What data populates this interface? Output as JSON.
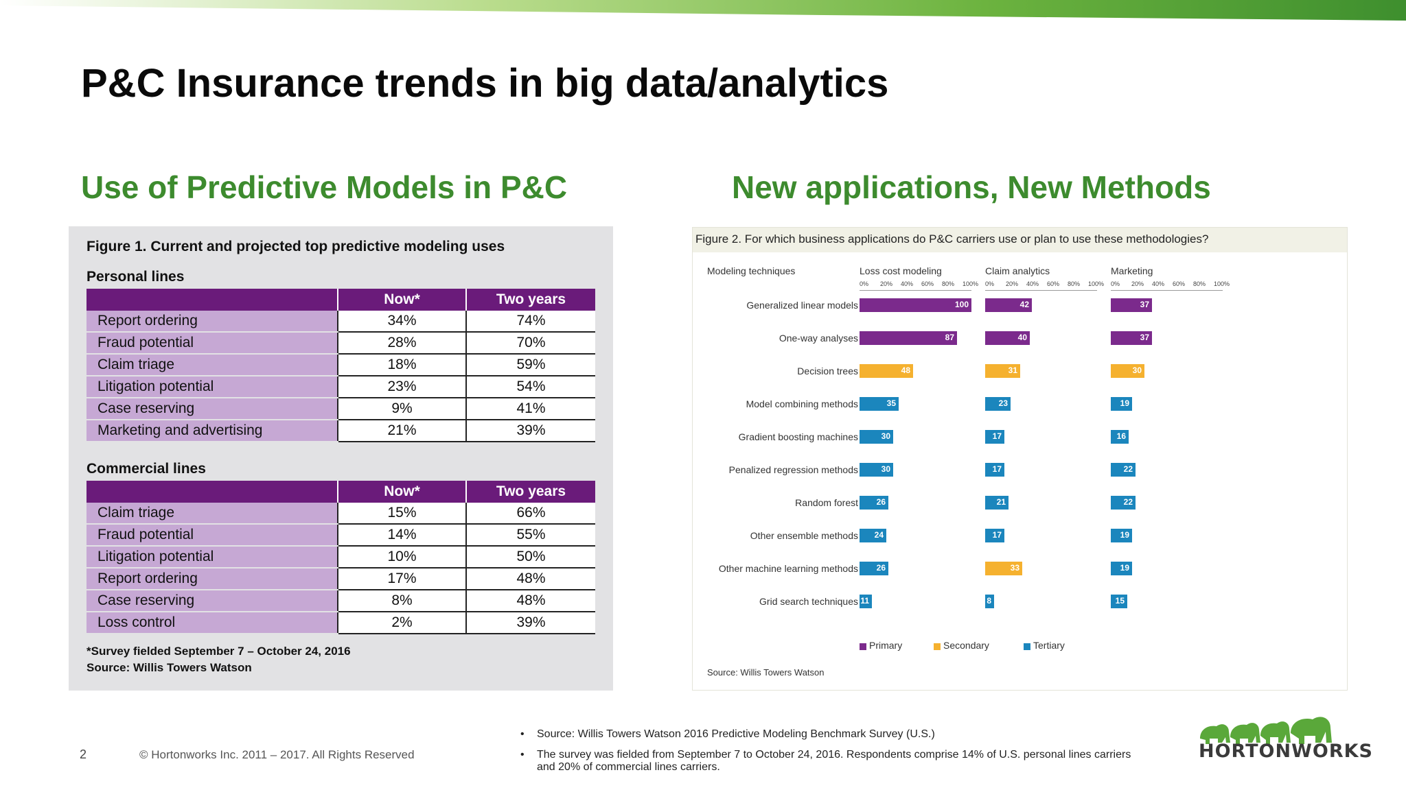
{
  "slide": {
    "title": "P&C Insurance trends in big data/analytics",
    "left_heading": "Use of Predictive Models in P&C",
    "right_heading": "New applications, New Methods"
  },
  "figure1": {
    "caption_prefix": "Figure 1.",
    "caption_rest": "Current and projected top predictive modeling uses",
    "personal": {
      "label": "Personal lines",
      "col_now": "Now*",
      "col_two": "Two years",
      "rows": [
        {
          "label": "Report ordering",
          "now": "34%",
          "two": "74%"
        },
        {
          "label": "Fraud potential",
          "now": "28%",
          "two": "70%"
        },
        {
          "label": "Claim triage",
          "now": "18%",
          "two": "59%"
        },
        {
          "label": "Litigation potential",
          "now": "23%",
          "two": "54%"
        },
        {
          "label": "Case reserving",
          "now": "9%",
          "two": "41%"
        },
        {
          "label": "Marketing and advertising",
          "now": "21%",
          "two": "39%"
        }
      ]
    },
    "commercial": {
      "label": "Commercial lines",
      "col_now": "Now*",
      "col_two": "Two years",
      "rows": [
        {
          "label": "Claim triage",
          "now": "15%",
          "two": "66%"
        },
        {
          "label": "Fraud potential",
          "now": "14%",
          "two": "55%"
        },
        {
          "label": "Litigation potential",
          "now": "10%",
          "two": "50%"
        },
        {
          "label": "Report ordering",
          "now": "17%",
          "two": "48%"
        },
        {
          "label": "Case reserving",
          "now": "8%",
          "two": "48%"
        },
        {
          "label": "Loss control",
          "now": "2%",
          "two": "39%"
        }
      ]
    },
    "note": "*Survey fielded September 7 – October 24, 2016",
    "source": "Source: Willis Towers Watson"
  },
  "chart_data": {
    "type": "bar",
    "orientation": "horizontal",
    "title": "Figure 2. For which business applications do P&C carriers use or plan to use these methodologies?",
    "row_header": "Modeling techniques",
    "categories": [
      "Generalized linear models",
      "One-way analyses",
      "Decision trees",
      "Model combining methods",
      "Gradient boosting machines",
      "Penalized regression methods",
      "Random forest",
      "Other ensemble methods",
      "Other machine learning methods",
      "Grid search techniques"
    ],
    "scale_ticks": [
      "0%",
      "20%",
      "40%",
      "60%",
      "80%",
      "100%"
    ],
    "xlim": [
      0,
      100
    ],
    "series": [
      {
        "name": "Loss cost modeling",
        "values": [
          100,
          87,
          48,
          35,
          30,
          30,
          26,
          24,
          26,
          11
        ],
        "usage": [
          "Primary",
          "Primary",
          "Secondary",
          "Tertiary",
          "Tertiary",
          "Tertiary",
          "Tertiary",
          "Tertiary",
          "Tertiary",
          "Tertiary"
        ]
      },
      {
        "name": "Claim analytics",
        "values": [
          42,
          40,
          31,
          23,
          17,
          17,
          21,
          17,
          33,
          8
        ],
        "usage": [
          "Primary",
          "Primary",
          "Secondary",
          "Tertiary",
          "Tertiary",
          "Tertiary",
          "Tertiary",
          "Tertiary",
          "Secondary",
          "Tertiary"
        ]
      },
      {
        "name": "Marketing",
        "values": [
          37,
          37,
          30,
          19,
          16,
          22,
          22,
          19,
          19,
          15
        ],
        "usage": [
          "Primary",
          "Primary",
          "Secondary",
          "Tertiary",
          "Tertiary",
          "Tertiary",
          "Tertiary",
          "Tertiary",
          "Tertiary",
          "Tertiary"
        ]
      }
    ],
    "legend": [
      {
        "name": "Primary",
        "color": "#7b2a8c"
      },
      {
        "name": "Secondary",
        "color": "#f5b12f"
      },
      {
        "name": "Tertiary",
        "color": "#1b86bd"
      }
    ],
    "source": "Source: Willis Towers Watson"
  },
  "footer": {
    "page_number": "2",
    "copyright": "© Hortonworks Inc. 2011 – 2017. All Rights Reserved",
    "bullet1": "Source:  Willis Towers Watson 2016 Predictive Modeling Benchmark Survey (U.S.)",
    "bullet2_line1": "The survey was fielded from September 7 to October 24, 2016. Respondents comprise 14% of U.S. personal lines carriers",
    "bullet2_line2": "and 20% of commercial lines carriers.",
    "logo_text": "HORTONWORKS"
  },
  "colors": {
    "accent_green": "#3d8b2e",
    "table_header": "#6a1b7a",
    "table_label": "#c6a8d4"
  }
}
